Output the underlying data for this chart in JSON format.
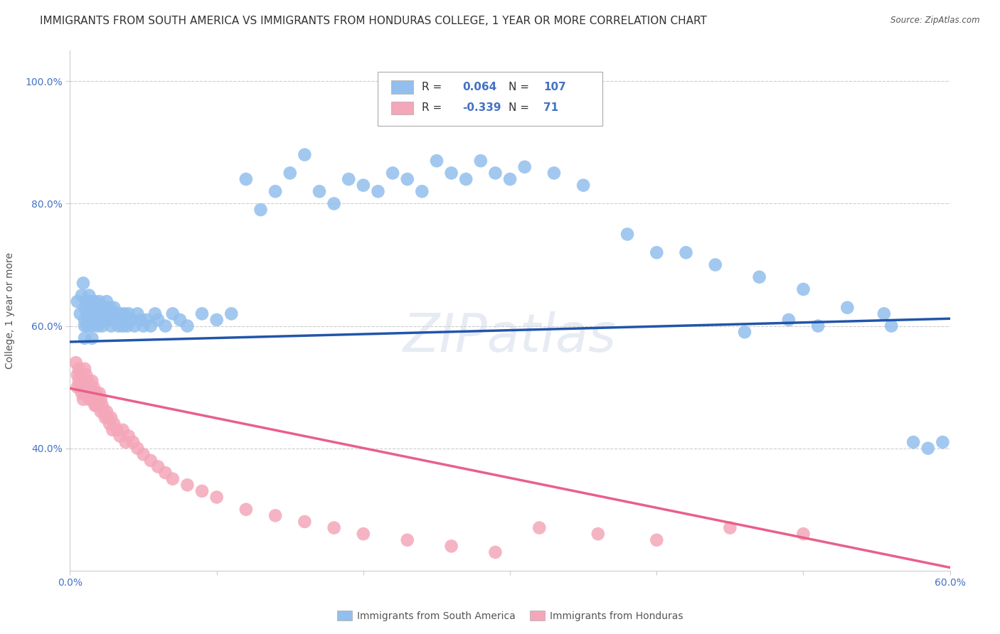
{
  "title": "IMMIGRANTS FROM SOUTH AMERICA VS IMMIGRANTS FROM HONDURAS COLLEGE, 1 YEAR OR MORE CORRELATION CHART",
  "source": "Source: ZipAtlas.com",
  "ylabel": "College, 1 year or more",
  "xlim": [
    0.0,
    0.6
  ],
  "ylim": [
    0.2,
    1.05
  ],
  "xtick_labels": [
    "0.0%",
    "",
    "",
    "",
    "",
    "",
    "60.0%"
  ],
  "xtick_vals": [
    0.0,
    0.1,
    0.2,
    0.3,
    0.4,
    0.5,
    0.6
  ],
  "ytick_labels": [
    "40.0%",
    "60.0%",
    "80.0%",
    "100.0%"
  ],
  "ytick_vals": [
    0.4,
    0.6,
    0.8,
    1.0
  ],
  "blue_R": 0.064,
  "blue_N": 107,
  "pink_R": -0.339,
  "pink_N": 71,
  "blue_color": "#92BFED",
  "pink_color": "#F4A7B9",
  "blue_line_color": "#2255AA",
  "pink_line_color": "#E8608A",
  "legend_label_blue": "Immigrants from South America",
  "legend_label_pink": "Immigrants from Honduras",
  "watermark": "ZIPatlas",
  "blue_scatter_x": [
    0.005,
    0.007,
    0.008,
    0.009,
    0.01,
    0.01,
    0.01,
    0.01,
    0.011,
    0.012,
    0.012,
    0.013,
    0.013,
    0.014,
    0.014,
    0.015,
    0.015,
    0.015,
    0.016,
    0.016,
    0.017,
    0.017,
    0.018,
    0.018,
    0.019,
    0.019,
    0.02,
    0.02,
    0.021,
    0.021,
    0.022,
    0.022,
    0.023,
    0.023,
    0.024,
    0.025,
    0.025,
    0.026,
    0.027,
    0.028,
    0.028,
    0.029,
    0.03,
    0.03,
    0.031,
    0.032,
    0.033,
    0.034,
    0.035,
    0.036,
    0.037,
    0.038,
    0.039,
    0.04,
    0.042,
    0.044,
    0.046,
    0.048,
    0.05,
    0.052,
    0.055,
    0.058,
    0.06,
    0.065,
    0.07,
    0.075,
    0.08,
    0.09,
    0.1,
    0.11,
    0.12,
    0.13,
    0.14,
    0.15,
    0.16,
    0.17,
    0.18,
    0.19,
    0.2,
    0.21,
    0.22,
    0.23,
    0.24,
    0.25,
    0.26,
    0.27,
    0.28,
    0.29,
    0.3,
    0.31,
    0.33,
    0.35,
    0.38,
    0.4,
    0.42,
    0.44,
    0.47,
    0.5,
    0.53,
    0.56,
    0.575,
    0.585,
    0.595,
    0.555,
    0.51,
    0.49,
    0.46
  ],
  "blue_scatter_y": [
    0.64,
    0.62,
    0.65,
    0.67,
    0.63,
    0.61,
    0.6,
    0.58,
    0.64,
    0.62,
    0.6,
    0.65,
    0.63,
    0.61,
    0.64,
    0.62,
    0.6,
    0.58,
    0.63,
    0.61,
    0.64,
    0.62,
    0.63,
    0.61,
    0.62,
    0.6,
    0.64,
    0.62,
    0.63,
    0.61,
    0.62,
    0.6,
    0.63,
    0.61,
    0.62,
    0.64,
    0.62,
    0.61,
    0.63,
    0.62,
    0.6,
    0.61,
    0.63,
    0.61,
    0.62,
    0.61,
    0.6,
    0.62,
    0.61,
    0.6,
    0.62,
    0.61,
    0.6,
    0.62,
    0.61,
    0.6,
    0.62,
    0.61,
    0.6,
    0.61,
    0.6,
    0.62,
    0.61,
    0.6,
    0.62,
    0.61,
    0.6,
    0.62,
    0.61,
    0.62,
    0.84,
    0.79,
    0.82,
    0.85,
    0.88,
    0.82,
    0.8,
    0.84,
    0.83,
    0.82,
    0.85,
    0.84,
    0.82,
    0.87,
    0.85,
    0.84,
    0.87,
    0.85,
    0.84,
    0.86,
    0.85,
    0.83,
    0.75,
    0.72,
    0.72,
    0.7,
    0.68,
    0.66,
    0.63,
    0.6,
    0.41,
    0.4,
    0.41,
    0.62,
    0.6,
    0.61,
    0.59
  ],
  "pink_scatter_x": [
    0.004,
    0.005,
    0.005,
    0.006,
    0.006,
    0.007,
    0.007,
    0.008,
    0.008,
    0.009,
    0.009,
    0.01,
    0.01,
    0.01,
    0.011,
    0.011,
    0.012,
    0.012,
    0.013,
    0.013,
    0.014,
    0.014,
    0.015,
    0.015,
    0.016,
    0.016,
    0.017,
    0.018,
    0.018,
    0.019,
    0.02,
    0.02,
    0.021,
    0.021,
    0.022,
    0.023,
    0.024,
    0.025,
    0.026,
    0.027,
    0.028,
    0.029,
    0.03,
    0.032,
    0.034,
    0.036,
    0.038,
    0.04,
    0.043,
    0.046,
    0.05,
    0.055,
    0.06,
    0.065,
    0.07,
    0.08,
    0.09,
    0.1,
    0.12,
    0.14,
    0.16,
    0.18,
    0.2,
    0.23,
    0.26,
    0.29,
    0.32,
    0.36,
    0.4,
    0.45,
    0.5
  ],
  "pink_scatter_y": [
    0.54,
    0.52,
    0.5,
    0.53,
    0.51,
    0.52,
    0.5,
    0.51,
    0.49,
    0.5,
    0.48,
    0.53,
    0.51,
    0.49,
    0.52,
    0.5,
    0.51,
    0.49,
    0.5,
    0.48,
    0.5,
    0.48,
    0.51,
    0.49,
    0.5,
    0.48,
    0.47,
    0.49,
    0.47,
    0.48,
    0.49,
    0.47,
    0.48,
    0.46,
    0.47,
    0.46,
    0.45,
    0.46,
    0.45,
    0.44,
    0.45,
    0.43,
    0.44,
    0.43,
    0.42,
    0.43,
    0.41,
    0.42,
    0.41,
    0.4,
    0.39,
    0.38,
    0.37,
    0.36,
    0.35,
    0.34,
    0.33,
    0.32,
    0.3,
    0.29,
    0.28,
    0.27,
    0.26,
    0.25,
    0.24,
    0.23,
    0.27,
    0.26,
    0.25,
    0.27,
    0.26
  ],
  "blue_trend_x": [
    0.0,
    0.6
  ],
  "blue_trend_y": [
    0.574,
    0.612
  ],
  "pink_trend_x": [
    0.0,
    0.6
  ],
  "pink_trend_y": [
    0.498,
    0.205
  ],
  "bg_color": "#FFFFFF",
  "grid_color": "#CCCCCC",
  "title_fontsize": 11,
  "axis_fontsize": 10,
  "tick_fontsize": 10,
  "legend_fontsize": 10
}
